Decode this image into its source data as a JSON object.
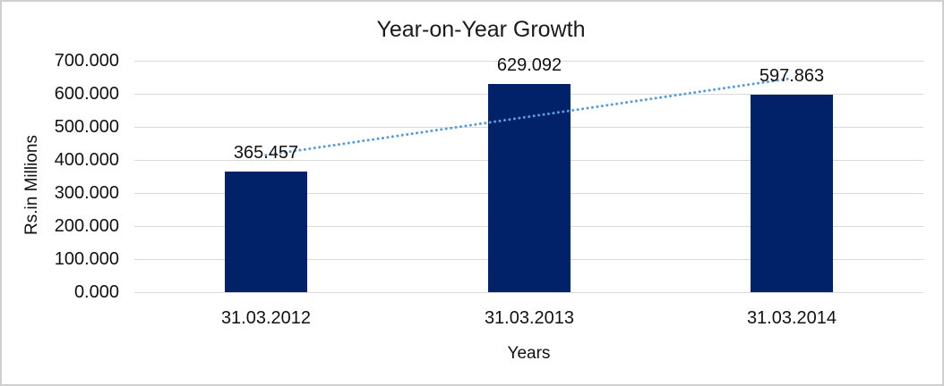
{
  "window": {
    "background_color": "#ffffff",
    "border_color": "#cfcfcf"
  },
  "chart_data": {
    "type": "bar",
    "title": "Year-on-Year Growth",
    "xlabel": "Years",
    "ylabel": "Rs.in Millions",
    "categories": [
      "31.03.2012",
      "31.03.2013",
      "31.03.2014"
    ],
    "values": [
      365.457,
      629.092,
      597.863
    ],
    "data_labels": [
      "365.457",
      "629.092",
      "597.863"
    ],
    "y_ticks": [
      {
        "value": 700,
        "label": "700.000"
      },
      {
        "value": 600,
        "label": "600.000"
      },
      {
        "value": 500,
        "label": "500.000"
      },
      {
        "value": 400,
        "label": "400.000"
      },
      {
        "value": 300,
        "label": "300.000"
      },
      {
        "value": 200,
        "label": "200.000"
      },
      {
        "value": 100,
        "label": "100.000"
      },
      {
        "value": 0,
        "label": "0.000"
      }
    ],
    "ylim": [
      0,
      700
    ],
    "grid": true,
    "legend": "none",
    "bar_color": "#012169",
    "gridline_color": "#d9d9d9",
    "trendline": {
      "type": "linear",
      "style": "dotted",
      "color": "#5b9bd5"
    }
  }
}
